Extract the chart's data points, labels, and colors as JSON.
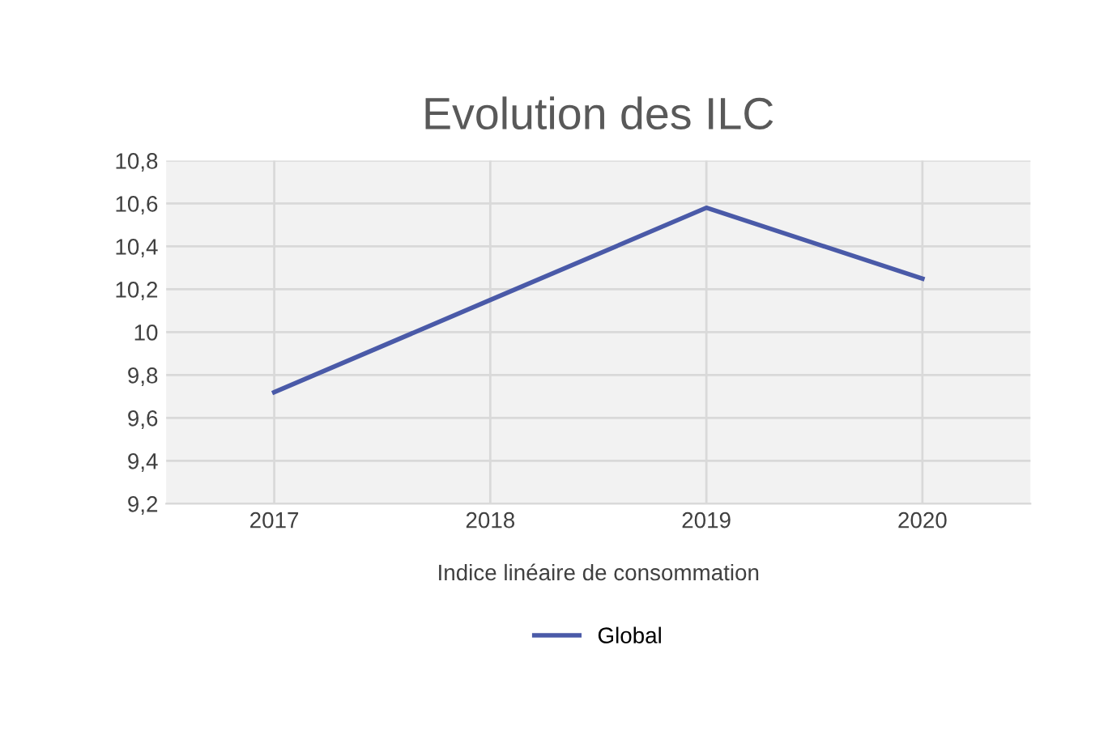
{
  "chart_data": {
    "type": "line",
    "title": "Evolution des ILC",
    "xlabel": "Indice linéaire de consommation",
    "categories": [
      "2017",
      "2018",
      "2019",
      "2020"
    ],
    "series": [
      {
        "name": "Global",
        "color": "#4a5aa8",
        "values": [
          9.72,
          10.15,
          10.58,
          10.25
        ]
      }
    ],
    "ylim": [
      9.2,
      10.8
    ],
    "yticks": [
      {
        "value": 9.2,
        "label": "9,2"
      },
      {
        "value": 9.4,
        "label": "9,4"
      },
      {
        "value": 9.6,
        "label": "9,6"
      },
      {
        "value": 9.8,
        "label": "9,8"
      },
      {
        "value": 10,
        "label": "10"
      },
      {
        "value": 10.2,
        "label": "10,2"
      },
      {
        "value": 10.4,
        "label": "10,4"
      },
      {
        "value": 10.6,
        "label": "10,6"
      },
      {
        "value": 10.8,
        "label": "10,8"
      }
    ],
    "grid": true,
    "legend": "bottom",
    "marker": "none",
    "line_style": "solid"
  }
}
